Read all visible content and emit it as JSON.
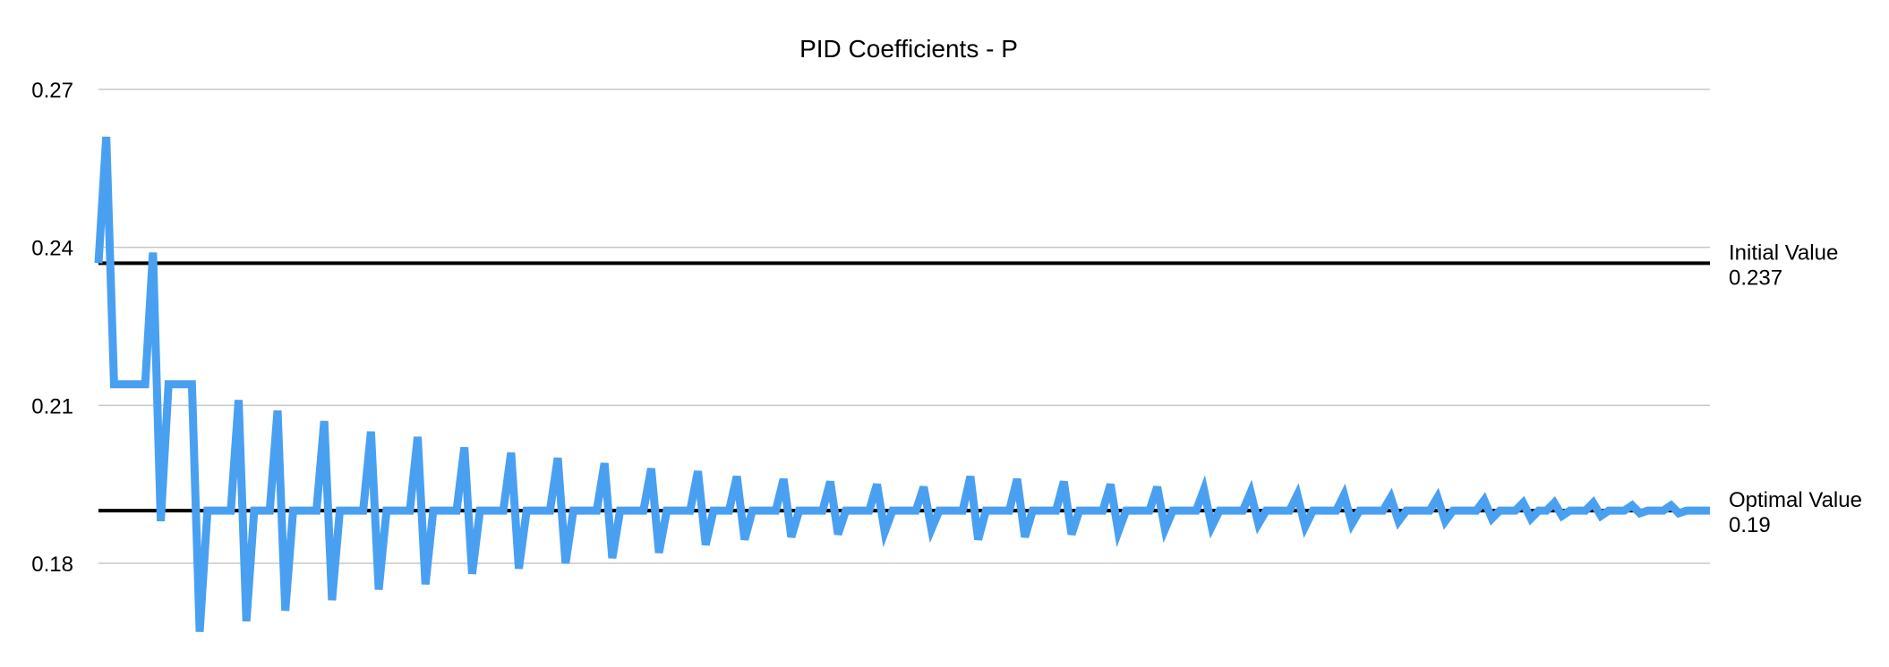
{
  "chart_data": {
    "type": "line",
    "title": "PID Coefficients - P",
    "xlabel": "",
    "ylabel": "",
    "ylim": [
      0.18,
      0.27
    ],
    "yticks": [
      "0.18",
      "0.21",
      "0.24",
      "0.27"
    ],
    "grid": true,
    "colors": {
      "series": "#4aa0f0",
      "reference": "#000000",
      "grid": "#c8c8c8"
    },
    "reference_lines": [
      {
        "label": "Initial Value",
        "value_label": "0.237",
        "value": 0.237
      },
      {
        "label": "Optimal Value",
        "value_label": "0.19",
        "value": 0.19
      }
    ],
    "series": [
      {
        "values": [
          0.237,
          0.261,
          0.214,
          0.214,
          0.214,
          0.214,
          0.214,
          0.239,
          0.188,
          0.214,
          0.214,
          0.214,
          0.214,
          0.167,
          0.19,
          0.19,
          0.19,
          0.19,
          0.211,
          0.169,
          0.19,
          0.19,
          0.19,
          0.209,
          0.171,
          0.19,
          0.19,
          0.19,
          0.19,
          0.207,
          0.173,
          0.19,
          0.19,
          0.19,
          0.19,
          0.205,
          0.175,
          0.19,
          0.19,
          0.19,
          0.19,
          0.204,
          0.176,
          0.19,
          0.19,
          0.19,
          0.19,
          0.202,
          0.178,
          0.19,
          0.19,
          0.19,
          0.19,
          0.201,
          0.179,
          0.19,
          0.19,
          0.19,
          0.19,
          0.2,
          0.18,
          0.19,
          0.19,
          0.19,
          0.19,
          0.199,
          0.181,
          0.19,
          0.19,
          0.19,
          0.19,
          0.198,
          0.182,
          0.19,
          0.19,
          0.19,
          0.19,
          0.1975,
          0.1835,
          0.19,
          0.19,
          0.19,
          0.1965,
          0.1845,
          0.19,
          0.19,
          0.19,
          0.19,
          0.196,
          0.185,
          0.19,
          0.19,
          0.19,
          0.19,
          0.1955,
          0.1855,
          0.19,
          0.19,
          0.19,
          0.19,
          0.195,
          0.186,
          0.19,
          0.19,
          0.19,
          0.19,
          0.1945,
          0.1865,
          0.19,
          0.19,
          0.19,
          0.19,
          0.1965,
          0.1845,
          0.19,
          0.19,
          0.19,
          0.19,
          0.196,
          0.185,
          0.19,
          0.19,
          0.19,
          0.19,
          0.1955,
          0.1855,
          0.19,
          0.19,
          0.19,
          0.19,
          0.195,
          0.186,
          0.19,
          0.19,
          0.19,
          0.19,
          0.1945,
          0.1865,
          0.19,
          0.19,
          0.19,
          0.19,
          0.194,
          0.187,
          0.19,
          0.19,
          0.19,
          0.19,
          0.1935,
          0.1875,
          0.19,
          0.19,
          0.19,
          0.19,
          0.193,
          0.187,
          0.19,
          0.19,
          0.19,
          0.19,
          0.193,
          0.1875,
          0.19,
          0.19,
          0.19,
          0.19,
          0.1925,
          0.188,
          0.19,
          0.19,
          0.19,
          0.19,
          0.1925,
          0.188,
          0.19,
          0.19,
          0.19,
          0.19,
          0.192,
          0.1885,
          0.19,
          0.19,
          0.19,
          0.1915,
          0.1885,
          0.19,
          0.19,
          0.1915,
          0.189,
          0.19,
          0.19,
          0.19,
          0.1915,
          0.189,
          0.19,
          0.19,
          0.19,
          0.191,
          0.1895,
          0.19,
          0.19,
          0.19,
          0.191,
          0.1895,
          0.19,
          0.19,
          0.19,
          0.19
        ]
      }
    ]
  }
}
